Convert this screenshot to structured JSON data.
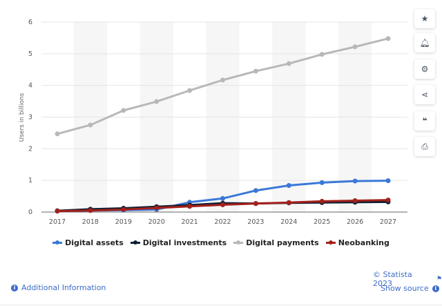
{
  "chart_data": {
    "type": "line",
    "title": "",
    "xlabel": "",
    "ylabel": "Users in billions",
    "ylim": [
      0,
      6
    ],
    "yticks": [
      "0",
      "1",
      "2",
      "3",
      "4",
      "5",
      "6"
    ],
    "categories": [
      "2017",
      "2018",
      "2019",
      "2020",
      "2021",
      "2022",
      "2023",
      "2024",
      "2025",
      "2026",
      "2027"
    ],
    "grid": true,
    "legend_position": "bottom",
    "series": [
      {
        "name": "Digital assets",
        "color": "#3a78d8",
        "values": [
          0.03,
          0.05,
          0.06,
          0.08,
          0.31,
          0.43,
          0.68,
          0.84,
          0.93,
          0.98,
          0.99
        ]
      },
      {
        "name": "Digital investments",
        "color": "#0f1f33",
        "values": [
          0.04,
          0.09,
          0.12,
          0.17,
          0.22,
          0.28,
          0.27,
          0.29,
          0.3,
          0.31,
          0.32
        ]
      },
      {
        "name": "Digital payments",
        "color": "#b8b8b8",
        "values": [
          2.47,
          2.75,
          3.21,
          3.49,
          3.84,
          4.17,
          4.45,
          4.69,
          4.98,
          5.22,
          5.48
        ]
      },
      {
        "name": "Neobanking",
        "color": "#a3201b",
        "values": [
          0.03,
          0.05,
          0.08,
          0.13,
          0.18,
          0.23,
          0.27,
          0.3,
          0.34,
          0.36,
          0.38
        ]
      }
    ]
  },
  "sidebar": {
    "icons": [
      "star-icon",
      "bell-icon",
      "gear-icon",
      "share-icon",
      "quote-icon",
      "print-icon"
    ]
  },
  "footer": {
    "copyright": "© Statista 2023",
    "additional_info": "Additional Information",
    "show_source": "Show source"
  }
}
